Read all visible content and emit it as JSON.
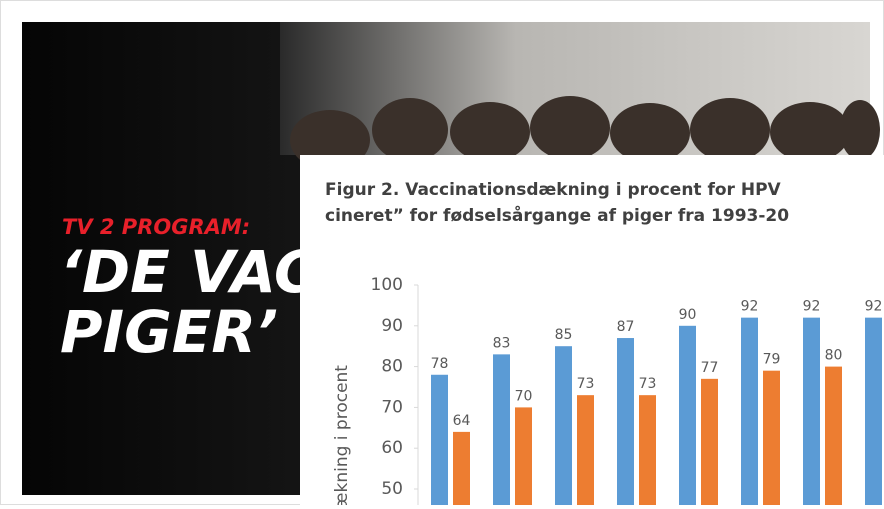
{
  "banner": {
    "kicker": "TV 2 PROGRAM:",
    "line1": "‘DE VAC",
    "line2": "PIGER’"
  },
  "chart_data": {
    "type": "bar",
    "title": [
      "Figur 2. Vaccinationsdækning i procent for HPV",
      "cineret” for fødselsårgange af piger fra 1993-20"
    ],
    "y_label": "dækning i procent",
    "categories": [
      null,
      null,
      null,
      null,
      null,
      null,
      null,
      null
    ],
    "series": [
      {
        "color": "#5b9bd5",
        "values": [
          78,
          83,
          85,
          87,
          90,
          92,
          92,
          92
        ]
      },
      {
        "color": "#ed7d31",
        "values": [
          64,
          70,
          73,
          73,
          77,
          79,
          80,
          null
        ]
      }
    ],
    "ylim": [
      46,
      100
    ],
    "yticks": [
      50,
      60,
      70,
      80,
      90,
      100
    ],
    "grid": false
  }
}
